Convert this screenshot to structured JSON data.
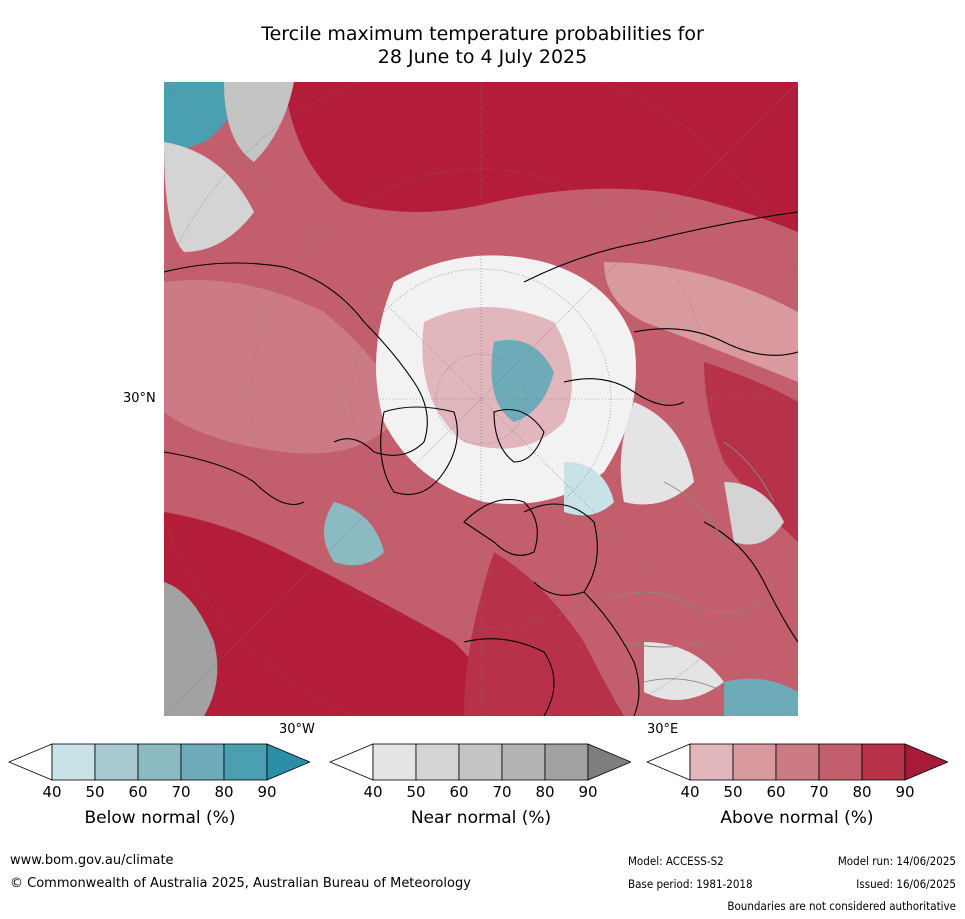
{
  "title_line1": "Tercile maximum temperature probabilities for",
  "title_line2": "28 June to 4 July 2025",
  "map": {
    "lat_label": "30°N",
    "lon_label_left": "30°W",
    "lon_label_right": "30°E"
  },
  "colorbars": [
    {
      "name": "below",
      "label": "Below normal (%)",
      "ticks": [
        "40",
        "50",
        "60",
        "70",
        "80",
        "90"
      ],
      "colors": [
        "#c9e2e8",
        "#a7c9cf",
        "#8cbac3",
        "#6dabb9",
        "#4a9fb0",
        "#2b8ea6"
      ]
    },
    {
      "name": "near",
      "label": "Near normal (%)",
      "ticks": [
        "40",
        "50",
        "60",
        "70",
        "80",
        "90"
      ],
      "colors": [
        "#e4e4e4",
        "#d4d4d4",
        "#c4c4c4",
        "#b4b4b4",
        "#a2a2a2",
        "#7e7e7e"
      ]
    },
    {
      "name": "above",
      "label": "Above normal (%)",
      "ticks": [
        "40",
        "50",
        "60",
        "70",
        "80",
        "90"
      ],
      "colors": [
        "#e2b6bd",
        "#d8999f",
        "#cc7b86",
        "#c35e6d",
        "#b73249",
        "#a81b38"
      ]
    }
  ],
  "footer": {
    "url": "www.bom.gov.au/climate",
    "copyright": "© Commonwealth of Australia 2025, Australian Bureau of Meteorology",
    "model": "Model: ACCESS-S2",
    "model_run": "Model run: 14/06/2025",
    "base_period": "Base period: 1981-2018",
    "issued": "Issued: 16/06/2025",
    "disclaimer": "Boundaries are not considered authoritative"
  }
}
